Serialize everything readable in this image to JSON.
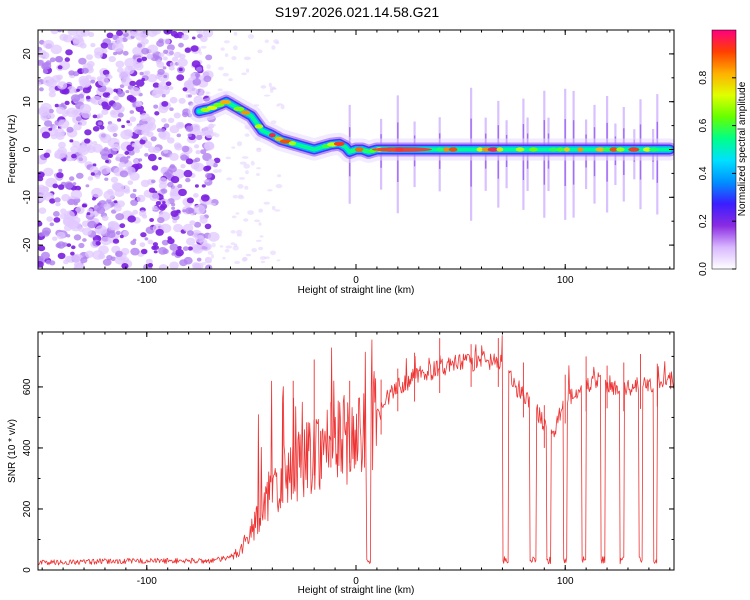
{
  "figure_title": "S197.2026.021.14.58.G21",
  "chart_data": [
    {
      "type": "heatmap",
      "title": "S197.2026.021.14.58.G21",
      "xlabel": "Height of straight line (km)",
      "ylabel": "Frequency (Hz)",
      "xlim": [
        -152,
        152
      ],
      "ylim": [
        -25,
        25
      ],
      "xticks": [
        -100,
        0,
        100
      ],
      "yticks": [
        -20,
        -10,
        0,
        10,
        20
      ],
      "noise_region_x": [
        -152,
        -70
      ],
      "ridge": {
        "x": [
          -75,
          -70,
          -62,
          -56,
          -50,
          -45,
          -40,
          -36,
          -32,
          -28,
          -24,
          -20,
          -16,
          -12,
          -8,
          -5,
          -3,
          0,
          3,
          6,
          10,
          20,
          40,
          60,
          80,
          100,
          120,
          148
        ],
        "y": [
          8,
          8.5,
          10,
          8.5,
          7,
          4,
          3,
          2,
          1.5,
          1,
          0.5,
          0,
          0.5,
          1,
          1.2,
          0.5,
          -0.5,
          0,
          0,
          -0.5,
          0,
          0,
          0,
          0,
          0,
          0,
          0,
          0
        ]
      },
      "colorbar": {
        "label": "Normalized spectral amplitude",
        "range": [
          0,
          1
        ],
        "ticks": [
          0.0,
          0.2,
          0.4,
          0.6,
          0.8
        ],
        "tick_labels": [
          "0.0",
          "0.2",
          "0.4",
          "0.6",
          "0.8"
        ],
        "colors": [
          "#ffffff",
          "#d9b8ff",
          "#8a2be2",
          "#3a1eff",
          "#0090ff",
          "#00e0ff",
          "#00ff88",
          "#66ff00",
          "#e0ff00",
          "#ffb000",
          "#ff4000",
          "#ff0080"
        ]
      }
    },
    {
      "type": "line",
      "xlabel": "Height of straight line (km)",
      "ylabel": "SNR (10 * v/v)",
      "xlim": [
        -152,
        152
      ],
      "ylim": [
        0,
        780
      ],
      "xticks": [
        -100,
        0,
        100
      ],
      "yticks": [
        0,
        200,
        400,
        600
      ],
      "line_color": "#ee3333",
      "series": [
        {
          "name": "SNR",
          "x": [
            -152,
            -140,
            -120,
            -100,
            -80,
            -70,
            -60,
            -55,
            -50,
            -45,
            -40,
            -35,
            -30,
            -25,
            -20,
            -15,
            -10,
            -5,
            0,
            5,
            10,
            15,
            20,
            30,
            40,
            50,
            60,
            70,
            73,
            76,
            80,
            85,
            90,
            95,
            100,
            105,
            110,
            115,
            120,
            125,
            130,
            135,
            140,
            145,
            148
          ],
          "y": [
            25,
            25,
            28,
            30,
            30,
            30,
            40,
            70,
            130,
            200,
            260,
            300,
            330,
            360,
            390,
            410,
            420,
            430,
            430,
            440,
            500,
            560,
            600,
            640,
            660,
            680,
            680,
            680,
            670,
            600,
            580,
            540,
            480,
            460,
            560,
            580,
            600,
            620,
            610,
            600,
            600,
            610,
            600,
            620,
            620
          ]
        }
      ],
      "spikes": [
        -35,
        -30,
        -20,
        -12,
        -3,
        12,
        20,
        28,
        40,
        55,
        68,
        80,
        90,
        100,
        110,
        120,
        128,
        136,
        144
      ],
      "dropouts": [
        {
          "start": 5,
          "end": 7
        },
        {
          "start": 70,
          "end": 73
        },
        {
          "start": 83,
          "end": 86
        },
        {
          "start": 91,
          "end": 93
        },
        {
          "start": 99,
          "end": 101
        },
        {
          "start": 108,
          "end": 110
        },
        {
          "start": 117,
          "end": 119
        },
        {
          "start": 126,
          "end": 128
        },
        {
          "start": 135,
          "end": 137
        },
        {
          "start": 142,
          "end": 144
        }
      ]
    }
  ]
}
